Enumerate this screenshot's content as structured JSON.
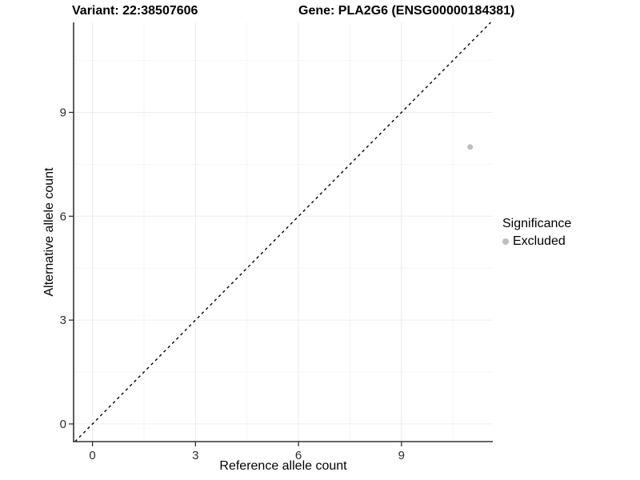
{
  "chart_data": {
    "type": "scatter",
    "title_left": "Variant: 22:38507606",
    "title_right": "Gene: PLA2G6 (ENSG00000184381)",
    "xlabel": "Reference allele count",
    "ylabel": "Alternative allele count",
    "xlim": [
      -0.55,
      11.66
    ],
    "ylim": [
      -0.51,
      11.6
    ],
    "xticks": [
      0,
      3,
      6,
      9
    ],
    "yticks": [
      0,
      3,
      6,
      9
    ],
    "minor_xticks": [
      1.5,
      4.5,
      7.5,
      10.5
    ],
    "minor_yticks": [
      1.5,
      4.5,
      7.5,
      10.5
    ],
    "grid": true,
    "identity_line": {
      "equation": "y = x",
      "style": "dashed",
      "color": "#000000"
    },
    "points": [
      {
        "x": 11,
        "y": 8,
        "series": "Excluded",
        "radius": 3.5
      }
    ],
    "legend": {
      "title": "Significance",
      "position": "right",
      "items": [
        {
          "label": "Excluded",
          "color": "#bebebe"
        }
      ]
    },
    "colors": {
      "point": "#bebebe",
      "axis_line": "#333333",
      "tick_label": "#2b2b2b",
      "grid_major": "#ececec",
      "grid_minor": "#f4f4f4",
      "background": "#ffffff"
    }
  }
}
